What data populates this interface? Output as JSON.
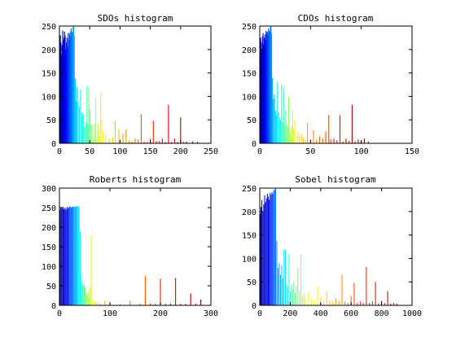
{
  "figure": {
    "background": "#ffffff"
  },
  "chart_data": [
    {
      "type": "bar",
      "title": "SDOs histogram",
      "xlim": [
        0,
        250
      ],
      "ylim": [
        0,
        250
      ],
      "xticks": [
        0,
        50,
        100,
        150,
        200,
        250
      ],
      "yticks": [
        0,
        50,
        100,
        150,
        200,
        250
      ],
      "colormap": "jet",
      "bar_width": 1.5,
      "bars": [
        [
          0.5,
          200
        ],
        [
          1.5,
          230
        ],
        [
          2.5,
          215
        ],
        [
          3.5,
          190
        ],
        [
          4.5,
          210
        ],
        [
          5.5,
          240
        ],
        [
          6.5,
          220
        ],
        [
          7.5,
          225
        ],
        [
          8.5,
          238
        ],
        [
          9.5,
          230
        ],
        [
          10.5,
          200
        ],
        [
          11.5,
          215
        ],
        [
          12.5,
          225
        ],
        [
          13.5,
          205
        ],
        [
          14.5,
          235
        ],
        [
          15.5,
          220
        ],
        [
          16.5,
          235
        ],
        [
          17.5,
          228
        ],
        [
          18.5,
          240
        ],
        [
          19.5,
          245
        ],
        [
          20.5,
          238
        ],
        [
          21.5,
          236
        ],
        [
          22.5,
          248
        ],
        [
          23.5,
          250
        ],
        [
          24.5,
          230
        ],
        [
          26,
          138
        ],
        [
          27.5,
          90
        ],
        [
          29,
          120
        ],
        [
          31,
          88
        ],
        [
          33,
          78
        ],
        [
          35,
          115
        ],
        [
          37,
          65
        ],
        [
          38.5,
          56
        ],
        [
          40,
          62
        ],
        [
          42,
          35
        ],
        [
          44,
          45
        ],
        [
          45.5,
          122
        ],
        [
          47,
          40
        ],
        [
          48.5,
          120
        ],
        [
          50,
          72
        ],
        [
          52,
          40
        ],
        [
          54,
          40
        ],
        [
          56,
          10
        ],
        [
          58,
          42
        ],
        [
          60,
          98
        ],
        [
          62,
          8
        ],
        [
          64,
          40
        ],
        [
          66,
          15
        ],
        [
          68,
          108
        ],
        [
          70,
          52
        ],
        [
          72,
          25
        ],
        [
          76,
          20
        ],
        [
          82,
          10
        ],
        [
          88,
          12
        ],
        [
          92,
          48
        ],
        [
          98,
          30
        ],
        [
          100,
          8
        ],
        [
          105,
          20
        ],
        [
          110,
          30
        ],
        [
          115,
          6
        ],
        [
          120,
          4
        ],
        [
          125,
          10
        ],
        [
          130,
          8
        ],
        [
          135,
          62
        ],
        [
          140,
          4
        ],
        [
          145,
          3
        ],
        [
          150,
          10
        ],
        [
          155,
          48
        ],
        [
          160,
          5
        ],
        [
          165,
          5
        ],
        [
          170,
          10
        ],
        [
          175,
          3
        ],
        [
          180,
          82
        ],
        [
          185,
          3
        ],
        [
          190,
          10
        ],
        [
          195,
          3
        ],
        [
          200,
          55
        ],
        [
          205,
          3
        ],
        [
          210,
          4
        ],
        [
          220,
          4
        ],
        [
          228,
          3
        ]
      ]
    },
    {
      "type": "bar",
      "title": "CDOs histogram",
      "xlim": [
        0,
        150
      ],
      "ylim": [
        0,
        250
      ],
      "xticks": [
        0,
        50,
        100,
        150
      ],
      "yticks": [
        0,
        50,
        100,
        150,
        200,
        250
      ],
      "colormap": "jet",
      "bar_width": 0.9,
      "bars": [
        [
          0.3,
          178
        ],
        [
          0.9,
          225
        ],
        [
          1.5,
          215
        ],
        [
          2.1,
          200
        ],
        [
          2.7,
          228
        ],
        [
          3.3,
          235
        ],
        [
          3.9,
          210
        ],
        [
          4.5,
          225
        ],
        [
          5.1,
          232
        ],
        [
          5.7,
          220
        ],
        [
          6.3,
          240
        ],
        [
          6.9,
          235
        ],
        [
          7.5,
          238
        ],
        [
          8.1,
          230
        ],
        [
          8.7,
          245
        ],
        [
          9.3,
          240
        ],
        [
          9.9,
          238
        ],
        [
          10.5,
          248
        ],
        [
          11.1,
          250
        ],
        [
          11.7,
          235
        ],
        [
          12.5,
          140
        ],
        [
          13.5,
          95
        ],
        [
          14.5,
          105
        ],
        [
          15.5,
          70
        ],
        [
          16.5,
          60
        ],
        [
          17.5,
          130
        ],
        [
          18.5,
          65
        ],
        [
          19.5,
          55
        ],
        [
          20.5,
          50
        ],
        [
          21.5,
          125
        ],
        [
          22.5,
          45
        ],
        [
          23.5,
          120
        ],
        [
          24.5,
          40
        ],
        [
          25.5,
          70
        ],
        [
          26.5,
          40
        ],
        [
          27.5,
          35
        ],
        [
          28.5,
          100
        ],
        [
          29.5,
          30
        ],
        [
          30.5,
          20
        ],
        [
          31.5,
          35
        ],
        [
          32.5,
          70
        ],
        [
          33.5,
          30
        ],
        [
          34.5,
          50
        ],
        [
          36,
          15
        ],
        [
          37.5,
          25
        ],
        [
          39,
          15
        ],
        [
          41,
          20
        ],
        [
          43,
          10
        ],
        [
          45,
          8
        ],
        [
          47,
          44
        ],
        [
          50,
          10
        ],
        [
          53,
          28
        ],
        [
          56,
          8
        ],
        [
          59,
          15
        ],
        [
          62,
          10
        ],
        [
          65,
          25
        ],
        [
          68,
          60
        ],
        [
          70,
          8
        ],
        [
          73,
          10
        ],
        [
          76,
          6
        ],
        [
          79,
          60
        ],
        [
          82,
          4
        ],
        [
          85,
          10
        ],
        [
          88,
          5
        ],
        [
          91,
          82
        ],
        [
          94,
          4
        ],
        [
          97,
          8
        ],
        [
          100,
          5
        ],
        [
          103,
          10
        ],
        [
          107,
          4
        ]
      ]
    },
    {
      "type": "bar",
      "title": "Roberts histogram",
      "xlim": [
        0,
        300
      ],
      "ylim": [
        0,
        300
      ],
      "xticks": [
        0,
        100,
        200,
        300
      ],
      "yticks": [
        0,
        50,
        100,
        150,
        200,
        250,
        300
      ],
      "colormap": "jet",
      "bar_width": 1.8,
      "bars": [
        [
          1,
          245
        ],
        [
          3,
          250
        ],
        [
          5,
          248
        ],
        [
          7,
          252
        ],
        [
          9,
          246
        ],
        [
          11,
          250
        ],
        [
          13,
          245
        ],
        [
          15,
          252
        ],
        [
          17,
          248
        ],
        [
          19,
          252
        ],
        [
          21,
          253
        ],
        [
          23,
          250
        ],
        [
          25,
          252
        ],
        [
          27,
          253
        ],
        [
          29,
          251
        ],
        [
          31,
          253
        ],
        [
          33,
          253
        ],
        [
          35,
          253
        ],
        [
          37,
          253
        ],
        [
          39,
          253
        ],
        [
          41,
          190
        ],
        [
          43,
          80
        ],
        [
          45,
          60
        ],
        [
          47,
          50
        ],
        [
          49,
          55
        ],
        [
          51,
          45
        ],
        [
          53,
          30
        ],
        [
          55,
          25
        ],
        [
          57,
          35
        ],
        [
          59,
          20
        ],
        [
          61,
          45
        ],
        [
          63,
          178
        ],
        [
          66,
          15
        ],
        [
          70,
          10
        ],
        [
          75,
          8
        ],
        [
          80,
          5
        ],
        [
          90,
          12
        ],
        [
          100,
          5
        ],
        [
          120,
          4
        ],
        [
          140,
          12
        ],
        [
          160,
          4
        ],
        [
          170,
          75
        ],
        [
          180,
          5
        ],
        [
          190,
          4
        ],
        [
          200,
          68
        ],
        [
          210,
          4
        ],
        [
          220,
          5
        ],
        [
          230,
          70
        ],
        [
          240,
          4
        ],
        [
          250,
          4
        ],
        [
          260,
          30
        ],
        [
          270,
          4
        ],
        [
          280,
          15
        ]
      ]
    },
    {
      "type": "bar",
      "title": "Sobel histogram",
      "xlim": [
        0,
        1000
      ],
      "ylim": [
        0,
        250
      ],
      "xticks": [
        0,
        200,
        400,
        600,
        800,
        1000
      ],
      "yticks": [
        0,
        50,
        100,
        150,
        200,
        250
      ],
      "colormap": "jet",
      "bar_width": 5,
      "bars": [
        [
          2,
          195
        ],
        [
          8,
          210
        ],
        [
          14,
          225
        ],
        [
          20,
          200
        ],
        [
          26,
          215
        ],
        [
          32,
          235
        ],
        [
          38,
          220
        ],
        [
          44,
          228
        ],
        [
          50,
          238
        ],
        [
          56,
          232
        ],
        [
          62,
          225
        ],
        [
          68,
          240
        ],
        [
          74,
          236
        ],
        [
          80,
          242
        ],
        [
          86,
          238
        ],
        [
          92,
          245
        ],
        [
          98,
          248
        ],
        [
          104,
          250
        ],
        [
          112,
          138
        ],
        [
          120,
          80
        ],
        [
          128,
          90
        ],
        [
          136,
          65
        ],
        [
          144,
          85
        ],
        [
          152,
          58
        ],
        [
          160,
          120
        ],
        [
          168,
          118
        ],
        [
          176,
          45
        ],
        [
          184,
          40
        ],
        [
          192,
          110
        ],
        [
          200,
          30
        ],
        [
          208,
          45
        ],
        [
          216,
          35
        ],
        [
          224,
          50
        ],
        [
          232,
          25
        ],
        [
          240,
          40
        ],
        [
          250,
          80
        ],
        [
          260,
          30
        ],
        [
          270,
          108
        ],
        [
          280,
          20
        ],
        [
          290,
          25
        ],
        [
          300,
          20
        ],
        [
          320,
          30
        ],
        [
          340,
          15
        ],
        [
          360,
          10
        ],
        [
          380,
          40
        ],
        [
          400,
          20
        ],
        [
          420,
          10
        ],
        [
          440,
          30
        ],
        [
          460,
          10
        ],
        [
          480,
          8
        ],
        [
          500,
          15
        ],
        [
          520,
          10
        ],
        [
          540,
          65
        ],
        [
          560,
          8
        ],
        [
          580,
          5
        ],
        [
          600,
          20
        ],
        [
          620,
          48
        ],
        [
          640,
          5
        ],
        [
          660,
          8
        ],
        [
          680,
          5
        ],
        [
          700,
          82
        ],
        [
          720,
          5
        ],
        [
          740,
          8
        ],
        [
          760,
          50
        ],
        [
          780,
          4
        ],
        [
          800,
          10
        ],
        [
          820,
          5
        ],
        [
          840,
          30
        ],
        [
          860,
          4
        ],
        [
          880,
          5
        ],
        [
          900,
          4
        ]
      ]
    }
  ]
}
